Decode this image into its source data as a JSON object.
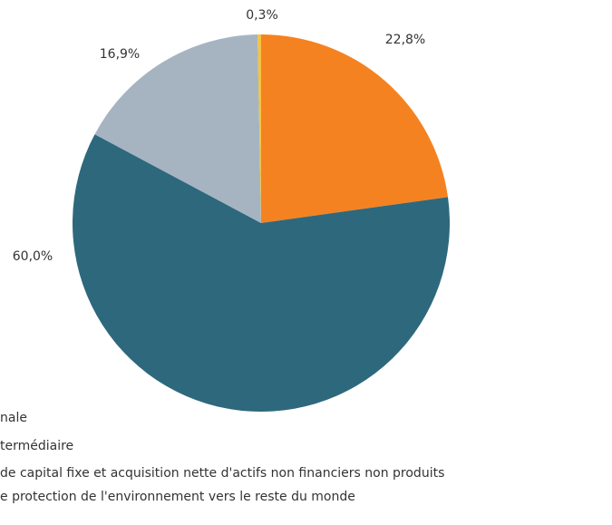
{
  "chart_data": {
    "type": "pie",
    "values": [
      22.8,
      60.0,
      16.9,
      0.3
    ],
    "value_labels": [
      "22,8%",
      "60,0%",
      "16,9%",
      "0,3%"
    ],
    "colors": [
      "#f58220",
      "#2e687d",
      "#a6b4c2",
      "#f5c342"
    ],
    "legend": [
      "nale",
      "termédiaire",
      "de capital fixe et acquisition nette d'actifs non financiers non produits",
      "e protection de l'environnement vers le reste du monde"
    ]
  }
}
